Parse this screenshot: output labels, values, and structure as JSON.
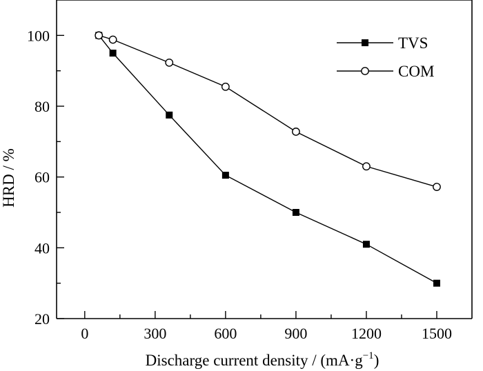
{
  "chart_data": {
    "type": "line",
    "xlabel": "Discharge current density / (mA·g",
    "xlabel_sup": "−1",
    "xlabel_end": ")",
    "ylabel": "HRD / %",
    "xlim": [
      -120,
      1650
    ],
    "ylim": [
      20,
      110
    ],
    "xticks": [
      0,
      300,
      600,
      900,
      1200,
      1500
    ],
    "yticks": [
      20,
      40,
      60,
      80,
      100
    ],
    "xtick_labels": [
      "0",
      "300",
      "600",
      "900",
      "1200",
      "1500"
    ],
    "ytick_labels": [
      "20",
      "40",
      "60",
      "80",
      "100"
    ],
    "legend_position": "top-right",
    "grid": false,
    "series": [
      {
        "name": "TVS",
        "marker": "filled-square",
        "color": "#000000",
        "x": [
          60,
          120,
          360,
          600,
          900,
          1200,
          1500
        ],
        "y": [
          100,
          95,
          77.5,
          60.5,
          50,
          41,
          30
        ]
      },
      {
        "name": "COM",
        "marker": "open-circle",
        "color": "#000000",
        "x": [
          60,
          120,
          360,
          600,
          900,
          1200,
          1500
        ],
        "y": [
          100,
          98.8,
          92.3,
          85.5,
          72.8,
          63,
          57.2
        ]
      }
    ]
  }
}
